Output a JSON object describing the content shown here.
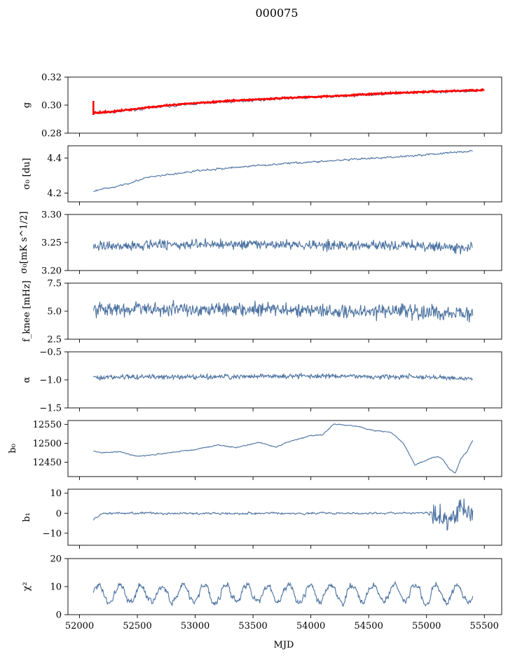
{
  "figure": {
    "title": "000075",
    "xlabel": "MJD"
  },
  "colors": {
    "series": "#4c72a0",
    "fit": "#ff0000"
  },
  "chart_data": [
    {
      "type": "line",
      "name": "gain",
      "ylabel": "g",
      "ylim": [
        0.28,
        0.32
      ],
      "yticks": [
        "0.28",
        "0.30",
        "0.32"
      ],
      "ytickvals": [
        0.28,
        0.3,
        0.32
      ],
      "xlim": [
        51900,
        55650
      ],
      "series": [
        {
          "values_x": [
            52120,
            52300,
            52600,
            53000,
            53400,
            53800,
            54200,
            54600,
            55000,
            55400
          ],
          "values_y": [
            0.294,
            0.295,
            0.298,
            0.301,
            0.303,
            0.305,
            0.306,
            0.308,
            0.309,
            0.31
          ]
        },
        {
          "values_x": [
            52120,
            52300,
            52600,
            53000,
            53400,
            53800,
            54200,
            54600,
            55000,
            55500
          ],
          "values_y": [
            0.2945,
            0.2955,
            0.2985,
            0.3015,
            0.3035,
            0.3052,
            0.3065,
            0.3082,
            0.3095,
            0.3108
          ]
        }
      ],
      "noise": 0.0006
    },
    {
      "type": "line",
      "name": "sigma0_du",
      "ylabel": "σ₀ [du]",
      "ylim": [
        4.15,
        4.47
      ],
      "yticks": [
        "4.2",
        "4.4"
      ],
      "ytickvals": [
        4.2,
        4.4
      ],
      "xlim": [
        51900,
        55650
      ],
      "series": [
        {
          "values_x": [
            52120,
            52300,
            52600,
            53000,
            53400,
            53800,
            54200,
            54600,
            55000,
            55400
          ],
          "values_y": [
            4.21,
            4.235,
            4.29,
            4.325,
            4.35,
            4.37,
            4.385,
            4.4,
            4.42,
            4.44
          ]
        }
      ],
      "noise": 0.004
    },
    {
      "type": "line",
      "name": "sigma0_mK",
      "ylabel": "σ₀[mK s^1/2]",
      "ylim": [
        3.2,
        3.3
      ],
      "yticks": [
        "3.20",
        "3.25",
        "3.30"
      ],
      "ytickvals": [
        3.2,
        3.25,
        3.3
      ],
      "xlim": [
        51900,
        55650
      ],
      "series": [
        {
          "values_x": [
            52120,
            53000,
            54000,
            55000,
            55400
          ],
          "values_y": [
            3.244,
            3.247,
            3.246,
            3.243,
            3.24
          ]
        }
      ],
      "noise": 0.008
    },
    {
      "type": "line",
      "name": "fknee",
      "ylabel": "f_knee [mHz]",
      "ylim": [
        2.5,
        7.5
      ],
      "yticks": [
        "2.5",
        "5.0",
        "7.5"
      ],
      "ytickvals": [
        2.5,
        5.0,
        7.5
      ],
      "xlim": [
        51900,
        55650
      ],
      "series": [
        {
          "values_x": [
            52120,
            53000,
            54000,
            55000,
            55400
          ],
          "values_y": [
            5.2,
            5.2,
            5.1,
            4.9,
            4.8
          ]
        }
      ],
      "noise": 0.55
    },
    {
      "type": "line",
      "name": "alpha",
      "ylabel": "α",
      "ylim": [
        -1.5,
        -0.5
      ],
      "yticks": [
        "−1.5",
        "−1.0",
        "−0.5"
      ],
      "ytickvals": [
        -1.5,
        -1.0,
        -0.5
      ],
      "xlim": [
        51900,
        55650
      ],
      "series": [
        {
          "values_x": [
            52120,
            53000,
            54000,
            55000,
            55400
          ],
          "values_y": [
            -0.95,
            -0.95,
            -0.93,
            -0.95,
            -0.98
          ]
        }
      ],
      "noise": 0.035
    },
    {
      "type": "line",
      "name": "b0",
      "ylabel": "b₀",
      "ylim": [
        12412,
        12560
      ],
      "yticks": [
        "12450",
        "12500",
        "12550"
      ],
      "ytickvals": [
        12450,
        12500,
        12550
      ],
      "xlim": [
        51900,
        55650
      ],
      "series": [
        {
          "values_x": [
            52120,
            52200,
            52350,
            52500,
            52650,
            52850,
            53000,
            53200,
            53350,
            53550,
            53700,
            53800,
            54000,
            54100,
            54200,
            54400,
            54550,
            54700,
            54800,
            54900,
            55000,
            55050,
            55100,
            55150,
            55200,
            55250,
            55300,
            55350,
            55400
          ],
          "values_y": [
            12480,
            12475,
            12478,
            12465,
            12470,
            12478,
            12483,
            12496,
            12488,
            12502,
            12490,
            12503,
            12520,
            12522,
            12551,
            12545,
            12533,
            12528,
            12500,
            12443,
            12455,
            12462,
            12465,
            12455,
            12430,
            12422,
            12460,
            12478,
            12507
          ]
        }
      ],
      "noise": 1.0
    },
    {
      "type": "line",
      "name": "b1",
      "ylabel": "b₁",
      "ylim": [
        -16,
        12
      ],
      "yticks": [
        "−10",
        "0",
        "10"
      ],
      "ytickvals": [
        -10,
        0,
        10
      ],
      "xlim": [
        51900,
        55650
      ],
      "series": [
        {
          "values_x": [
            52120,
            52200,
            53000,
            54000,
            54700,
            55000,
            55100,
            55200,
            55300,
            55400
          ],
          "values_y": [
            -3,
            0,
            0,
            0,
            0,
            0,
            -2,
            -4,
            3,
            0
          ]
        }
      ],
      "noise": 0.4
    },
    {
      "type": "line",
      "name": "chi2",
      "ylabel": "χ²",
      "ylim": [
        0,
        20
      ],
      "yticks": [
        "0",
        "10",
        "20"
      ],
      "ytickvals": [
        0,
        10,
        20
      ],
      "xlim": [
        51900,
        55650
      ],
      "xticks": [
        "52000",
        "52500",
        "53000",
        "53500",
        "54000",
        "54500",
        "55000",
        "55500"
      ],
      "xtickvals": [
        52000,
        52500,
        53000,
        53500,
        54000,
        54500,
        55000,
        55500
      ],
      "series": [
        {
          "values_x": [
            52120,
            55400
          ],
          "values_y": [
            7.5,
            7.5
          ]
        }
      ],
      "period": 182.6,
      "amplitude": 3.0,
      "noise": 1.0
    }
  ]
}
